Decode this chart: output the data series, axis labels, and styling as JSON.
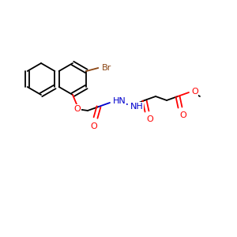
{
  "background": "#ffffff",
  "bond_color": "#000000",
  "atom_colors": {
    "O": "#ff0000",
    "N": "#0000cd",
    "Br": "#8b4513",
    "C": "#000000"
  },
  "font_size": 7.5,
  "lw": 1.3
}
